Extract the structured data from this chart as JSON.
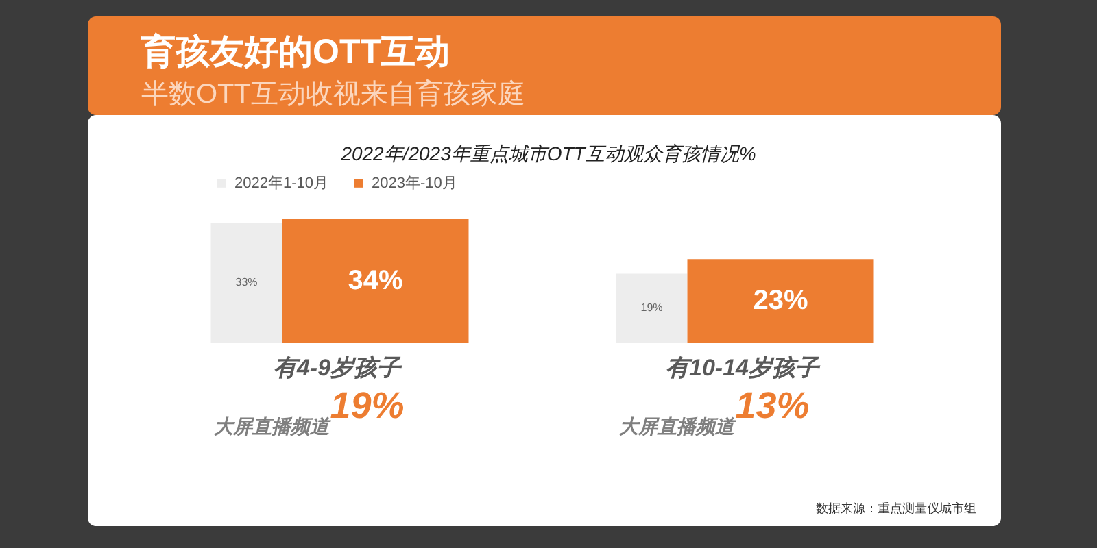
{
  "chart_data": {
    "type": "bar",
    "title": "育孩友好的OTT互动",
    "subtitle": "半数OTT互动收视来自育孩家庭",
    "categories": [
      "有4-9岁孩子",
      "有10-14岁孩子"
    ],
    "series": [
      {
        "name": "2022年1-10月",
        "color": "#ededed",
        "values": [
          33,
          19
        ],
        "value_labels": [
          "33%",
          "19%"
        ]
      },
      {
        "name": "2023年-10月",
        "color": "#ed7d31",
        "values": [
          34,
          23
        ],
        "value_labels": [
          "34%",
          "23%"
        ]
      }
    ],
    "legend": "top left",
    "annotations": [
      "2022年/2023年重点城市OTT互动观众育孩情况%",
      "大屏直播频道",
      "19%",
      "大屏直播频道",
      "13%",
      "数据来源：重点测量仪城市组"
    ]
  }
}
